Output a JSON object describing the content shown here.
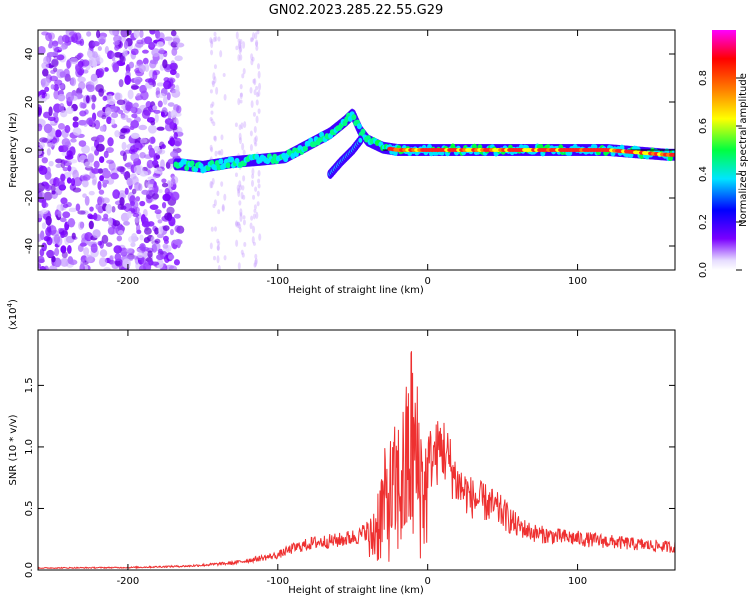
{
  "figure": {
    "title": "GN02.2023.285.22.55.G29"
  },
  "chart_data": [
    {
      "type": "heatmap",
      "xlabel": "Height of straight line (km)",
      "ylabel": "Frequency (Hz)",
      "xlim": [
        -260,
        165
      ],
      "ylim": [
        -50,
        50
      ],
      "x_ticks": [
        -200,
        -100,
        0,
        100
      ],
      "x_tick_labels": [
        "-200",
        "-100",
        "0",
        "100"
      ],
      "y_ticks": [
        -40,
        -20,
        0,
        20,
        40
      ],
      "y_tick_labels": [
        "-40",
        "-20",
        "0",
        "20",
        "40"
      ],
      "colorbar": {
        "label": "Normalized spectral amplitude",
        "range": [
          0,
          1
        ],
        "ticks": [
          0.0,
          0.2,
          0.4,
          0.6,
          0.8
        ],
        "tick_labels": [
          "0.0",
          "0.2",
          "0.4",
          "0.6",
          "0.8"
        ],
        "colormap": [
          "#ffffff",
          "#e6dcff",
          "#7a00ff",
          "#0000ff",
          "#00e5ff",
          "#00ff40",
          "#ffff00",
          "#ff8000",
          "#ff0000",
          "#ff00ff"
        ]
      },
      "signal_track": {
        "description_points_x": [
          -165,
          -150,
          -130,
          -110,
          -95,
          -80,
          -65,
          -55,
          -50,
          -45,
          -40,
          -30,
          -20,
          0,
          20,
          40,
          60,
          80,
          100,
          120,
          140,
          160
        ],
        "frequency_y": [
          -6,
          -7,
          -5,
          -4,
          -3,
          2,
          7,
          12,
          15,
          8,
          4,
          1,
          0,
          0,
          0,
          0,
          0,
          0,
          0,
          0,
          -1,
          -2
        ],
        "branch_x": [
          -65,
          -58,
          -50,
          -45
        ],
        "branch_y": [
          -10,
          -5,
          0,
          4
        ]
      },
      "noise_region_x": [
        -260,
        -165
      ]
    },
    {
      "type": "line",
      "xlabel": "Height of straight line (km)",
      "ylabel": "SNR (10 * v/v)",
      "y_multiplier_label": "(x10",
      "y_multiplier_exp": "4",
      "xlim": [
        -260,
        165
      ],
      "ylim": [
        0,
        19500
      ],
      "x_ticks": [
        -200,
        -100,
        0,
        100
      ],
      "x_tick_labels": [
        "-200",
        "-100",
        "0",
        "100"
      ],
      "y_ticks": [
        0,
        5000,
        10000,
        15000
      ],
      "y_tick_labels": [
        "0.0",
        "0.5",
        "1.0",
        "1.5"
      ],
      "color": "#ee3030",
      "envelope": {
        "x": [
          -260,
          -200,
          -160,
          -130,
          -100,
          -90,
          -75,
          -60,
          -45,
          -38,
          -30,
          -25,
          -20,
          -15,
          -11,
          -5,
          0,
          5,
          10,
          20,
          30,
          40,
          50,
          60,
          70,
          80,
          100,
          120,
          140,
          165
        ],
        "y": [
          200,
          250,
          400,
          700,
          1500,
          2200,
          2800,
          3000,
          3500,
          4500,
          9500,
          11000,
          12500,
          14500,
          19500,
          14000,
          11500,
          12000,
          13000,
          9000,
          7500,
          7000,
          6000,
          4500,
          3800,
          3500,
          3200,
          2900,
          2600,
          2300
        ]
      }
    }
  ]
}
